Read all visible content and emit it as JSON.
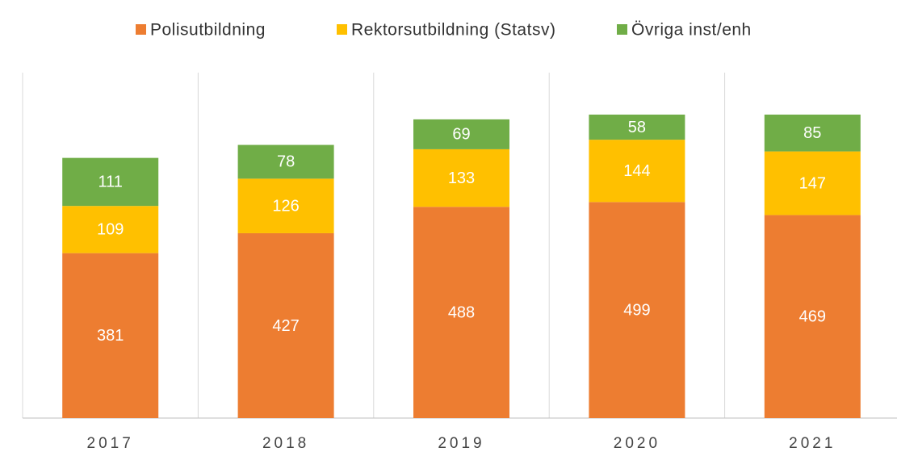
{
  "chart_data": {
    "type": "stacked_bar",
    "categories": [
      "2017",
      "2018",
      "2019",
      "2020",
      "2021"
    ],
    "series": [
      {
        "name": "Polisutbildning",
        "color": "#ED7D31",
        "values": [
          381,
          427,
          488,
          499,
          469
        ]
      },
      {
        "name": "Rektorsutbildning (Statsv)",
        "color": "#FFC000",
        "values": [
          109,
          126,
          133,
          144,
          147
        ]
      },
      {
        "name": "Övriga inst/enh",
        "color": "#70AD47",
        "values": [
          111,
          78,
          69,
          58,
          85
        ]
      }
    ],
    "legend": "top"
  }
}
